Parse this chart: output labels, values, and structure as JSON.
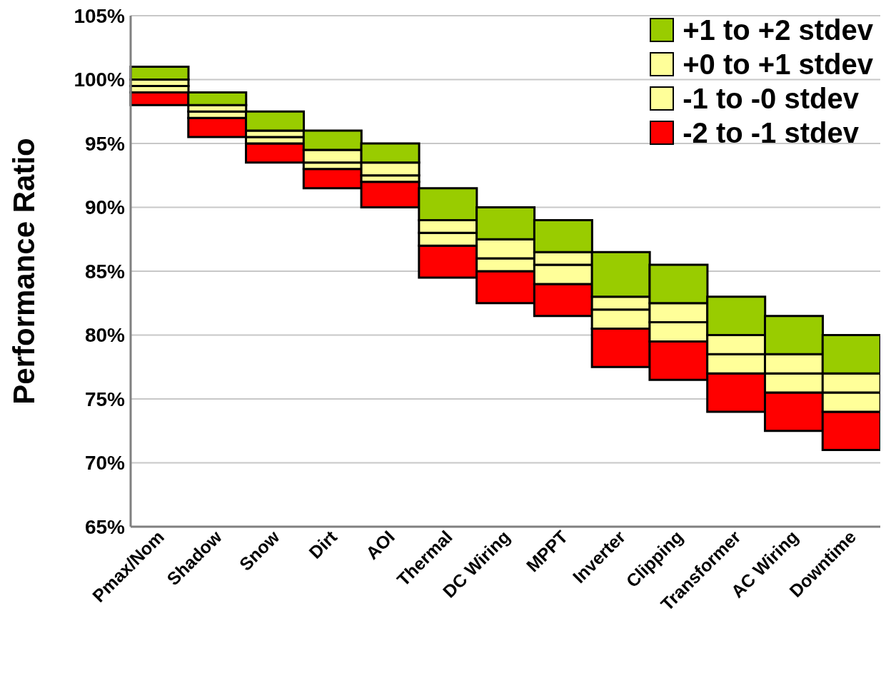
{
  "chart_data": {
    "type": "bar",
    "ylabel": "Performance Ratio",
    "categories": [
      "Pmax/Nom",
      "Shadow",
      "Snow",
      "Dirt",
      "AOI",
      "Thermal",
      "DC Wiring",
      "MPPT",
      "Inverter",
      "Clipping",
      "Transformer",
      "AC Wiring",
      "Downtime"
    ],
    "series": [
      {
        "name": "-2 to -1 stdev",
        "color": "#ff0000",
        "base": [
          98,
          95.5,
          93.5,
          91.5,
          90,
          84.5,
          82.5,
          81.5,
          77.5,
          76.5,
          74,
          72.5,
          71
        ],
        "values": [
          1,
          1.5,
          1.5,
          1.5,
          2,
          2.5,
          2.5,
          2.5,
          3,
          3,
          3,
          3,
          3
        ]
      },
      {
        "name": "-1 to -0 stdev",
        "color": "#ffff99",
        "base": [
          99,
          97,
          95,
          93,
          92,
          87,
          85,
          84,
          80.5,
          79.5,
          77,
          75.5,
          74
        ],
        "values": [
          0.5,
          0.5,
          0.5,
          0.5,
          0.5,
          1,
          1,
          1.5,
          1.5,
          1.5,
          1.5,
          1.5,
          1.5
        ]
      },
      {
        "name": "+0 to +1 stdev",
        "color": "#ffff99",
        "base": [
          99.5,
          97.5,
          95.5,
          93.5,
          92.5,
          88,
          86,
          85.5,
          82,
          81,
          78.5,
          77,
          75.5
        ],
        "values": [
          0.5,
          0.5,
          0.5,
          1,
          1,
          1,
          1.5,
          1,
          1,
          1.5,
          1.5,
          1.5,
          1.5
        ]
      },
      {
        "name": "+1 to +2 stdev",
        "color": "#99cc00",
        "base": [
          100,
          98,
          96,
          94.5,
          93.5,
          89,
          87.5,
          86.5,
          83,
          82.5,
          80,
          78.5,
          77
        ],
        "values": [
          1,
          1,
          1.5,
          1.5,
          1.5,
          2.5,
          2.5,
          2.5,
          3.5,
          3,
          3,
          3,
          3
        ]
      }
    ],
    "ylim": [
      65,
      105
    ],
    "yticks": [
      {
        "value": 65,
        "label": "65%"
      },
      {
        "value": 70,
        "label": "70%"
      },
      {
        "value": 75,
        "label": "75%"
      },
      {
        "value": 80,
        "label": "80%"
      },
      {
        "value": 85,
        "label": "85%"
      },
      {
        "value": 90,
        "label": "90%"
      },
      {
        "value": 95,
        "label": "95%"
      },
      {
        "value": 100,
        "label": "100%"
      },
      {
        "value": 105,
        "label": "105%"
      }
    ],
    "grid": "y",
    "legend": "top right"
  }
}
